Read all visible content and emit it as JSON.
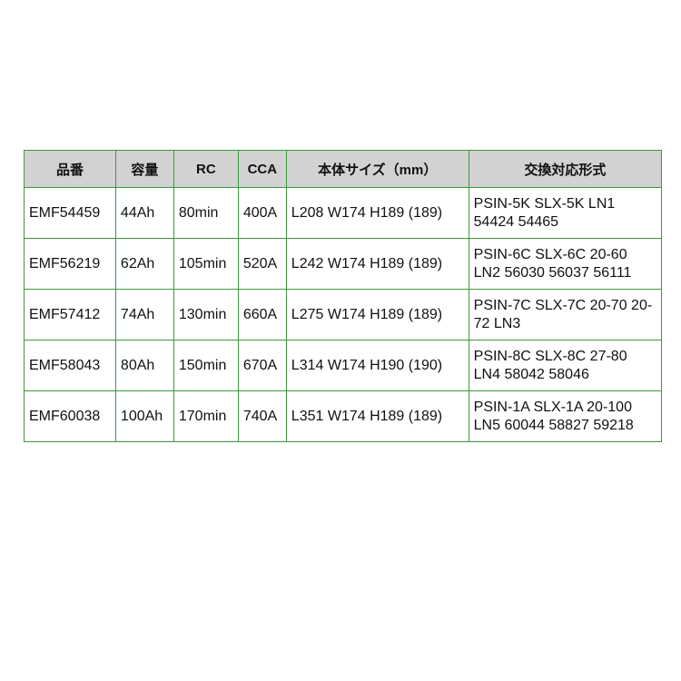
{
  "table": {
    "headers": [
      "品番",
      "容量",
      "RC",
      "CCA",
      "本体サイズ（mm）",
      "交換対応形式"
    ],
    "rows": [
      [
        "EMF54459",
        "44Ah",
        "80min",
        "400A",
        "L208 W174 H189 (189)",
        "PSIN-5K SLX-5K LN1 54424 54465"
      ],
      [
        "EMF56219",
        "62Ah",
        "105min",
        "520A",
        "L242 W174 H189 (189)",
        "PSIN-6C SLX-6C 20-60 LN2 56030 56037 56111"
      ],
      [
        "EMF57412",
        "74Ah",
        "130min",
        "660A",
        "L275 W174 H189 (189)",
        "PSIN-7C SLX-7C 20-70 20-72 LN3"
      ],
      [
        "EMF58043",
        "80Ah",
        "150min",
        "670A",
        "L314 W174 H190 (190)",
        "PSIN-8C SLX-8C 27-80 LN4 58042 58046"
      ],
      [
        "EMF60038",
        "100Ah",
        "170min",
        "740A",
        "L351 W174 H189 (189)",
        "PSIN-1A SLX-1A 20-100 LN5 60044 58827 59218"
      ]
    ]
  },
  "colors": {
    "border": "#3a9a3a",
    "header_bg": "#d2d2d2"
  }
}
